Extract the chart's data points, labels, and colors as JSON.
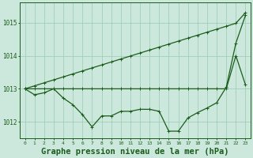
{
  "x": [
    0,
    1,
    2,
    3,
    4,
    5,
    6,
    7,
    8,
    9,
    10,
    11,
    12,
    13,
    14,
    15,
    16,
    17,
    18,
    19,
    20,
    21,
    22,
    23
  ],
  "line_main": [
    1013.0,
    1012.82,
    1012.88,
    1013.0,
    1012.72,
    1012.52,
    1012.22,
    1011.85,
    1012.18,
    1012.18,
    1012.32,
    1012.32,
    1012.38,
    1012.38,
    1012.32,
    1011.72,
    1011.72,
    1012.12,
    1012.28,
    1012.42,
    1012.58,
    1013.05,
    1014.38,
    1015.22
  ],
  "line_upper": [
    1013.0,
    1013.09,
    1013.18,
    1013.27,
    1013.36,
    1013.45,
    1013.54,
    1013.63,
    1013.72,
    1013.81,
    1013.9,
    1013.99,
    1014.08,
    1014.17,
    1014.26,
    1014.35,
    1014.44,
    1014.53,
    1014.62,
    1014.71,
    1014.8,
    1014.89,
    1014.98,
    1015.3
  ],
  "line_lower": [
    1013.0,
    1013.0,
    1013.0,
    1013.0,
    1013.0,
    1013.0,
    1013.0,
    1013.0,
    1013.0,
    1013.0,
    1013.0,
    1013.0,
    1013.0,
    1013.0,
    1013.0,
    1013.0,
    1013.0,
    1013.0,
    1013.0,
    1013.0,
    1013.0,
    1013.0,
    1014.0,
    1013.12
  ],
  "line_color": "#1a5c1a",
  "marker": "+",
  "bg_color": "#cce8dc",
  "grid_color": "#99ccb3",
  "axis_color": "#1a5c1a",
  "title": "Graphe pression niveau de la mer (hPa)",
  "ylabel_ticks": [
    1012,
    1013,
    1014,
    1015
  ],
  "xlim": [
    -0.5,
    23.5
  ],
  "ylim": [
    1011.5,
    1015.6
  ],
  "title_fontsize": 7.5
}
